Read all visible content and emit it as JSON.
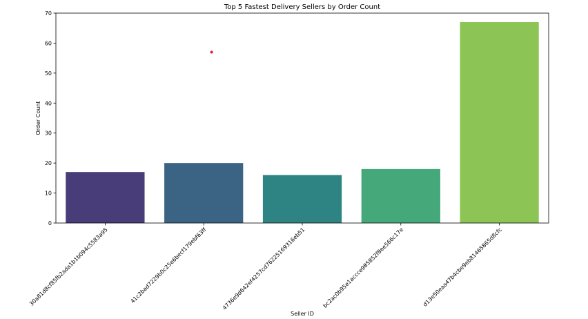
{
  "chart_data": {
    "type": "bar",
    "title": "Top 5 Fastest Delivery Sellers by Order Count",
    "xlabel": "Seller ID",
    "ylabel": "Order Count",
    "ylim": [
      0,
      70
    ],
    "yticks": [
      0,
      10,
      20,
      30,
      40,
      50,
      60,
      70
    ],
    "grid": false,
    "categories": [
      "30a81d8cf85fb2ada1b1b094c5583a95",
      "41c2bad7229b0c25e6becf179ebf63ff",
      "4736e9d642ef4257cd76225169316eb51",
      "bc2ac0b95e1accce985852f8ee566c17e",
      "d13e50eaa47b4cbe9eb81465865d8cfc"
    ],
    "values": [
      17,
      20,
      16,
      18,
      67
    ],
    "colors": [
      "#483d78",
      "#3b6484",
      "#2d8482",
      "#45a87a",
      "#8cc556"
    ],
    "annotations": [
      {
        "x": 1.08,
        "y": 57,
        "color": "#e5173f"
      }
    ]
  }
}
